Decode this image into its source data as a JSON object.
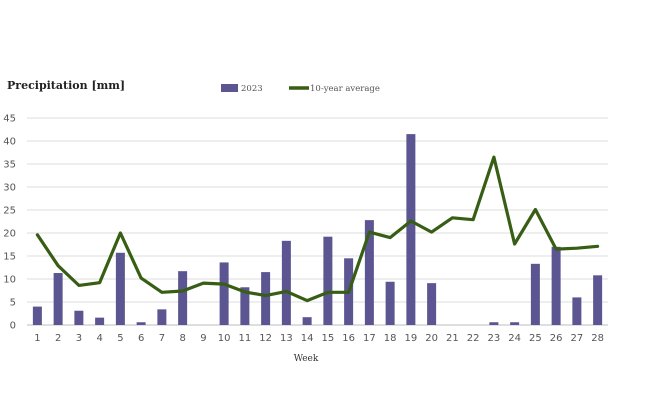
{
  "chart_data": {
    "type": "bar+line",
    "title": "Precipitation [mm]",
    "xlabel": "Week",
    "ylabel": "",
    "ylim": [
      0,
      45
    ],
    "yticks": [
      0,
      5,
      10,
      15,
      20,
      25,
      30,
      35,
      40,
      45
    ],
    "grid": true,
    "legend_position": "top-center",
    "categories": [
      "1",
      "2",
      "3",
      "4",
      "5",
      "6",
      "7",
      "8",
      "9",
      "10",
      "11",
      "12",
      "13",
      "14",
      "15",
      "16",
      "17",
      "18",
      "19",
      "20",
      "21",
      "22",
      "23",
      "24",
      "25",
      "26",
      "27",
      "28"
    ],
    "series": [
      {
        "name": "2023",
        "type": "bar",
        "color": "#5b5591",
        "values": [
          4.0,
          11.3,
          3.1,
          1.6,
          15.7,
          0.6,
          3.4,
          11.7,
          0,
          13.6,
          8.2,
          11.5,
          18.3,
          1.7,
          19.2,
          14.5,
          22.8,
          9.4,
          41.5,
          9.1,
          0,
          0,
          0.6,
          0.6,
          13.3,
          17.0,
          6.0,
          10.8
        ]
      },
      {
        "name": "10-year average",
        "type": "line",
        "color": "#375e14",
        "values": [
          19.6,
          12.9,
          8.6,
          9.2,
          20.0,
          10.2,
          7.1,
          7.4,
          9.1,
          8.9,
          7.2,
          6.4,
          7.3,
          5.3,
          7.1,
          7.1,
          20.2,
          19.0,
          22.6,
          20.2,
          23.3,
          22.9,
          36.5,
          17.6,
          25.1,
          16.5,
          16.7,
          17.1
        ]
      }
    ]
  }
}
